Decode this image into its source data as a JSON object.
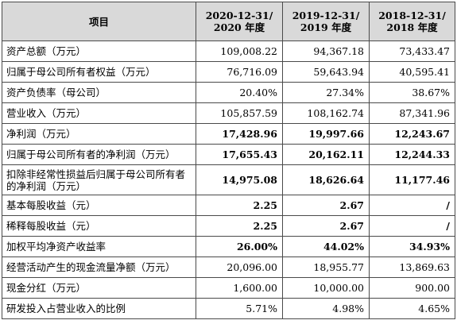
{
  "header": {
    "item": "项目",
    "col1": [
      "2020-12-31/",
      "2020 年度"
    ],
    "col2": [
      "2019-12-31/",
      "2019 年度"
    ],
    "col3": [
      "2018-12-31/",
      "2018 年度"
    ]
  },
  "rows": [
    {
      "label": "资产总额（万元）",
      "values": [
        "109,008.22",
        "94,367.18",
        "73,433.47"
      ],
      "bold": false
    },
    {
      "label": "归属于母公司所有者权益（万元）",
      "values": [
        "76,716.09",
        "59,643.94",
        "40,595.41"
      ],
      "bold": false
    },
    {
      "label": "资产负债率（母公司）",
      "values": [
        "20.40%",
        "27.34%",
        "38.67%"
      ],
      "bold": false
    },
    {
      "label": "营业收入（万元）",
      "values": [
        "105,857.59",
        "108,162.74",
        "87,341.96"
      ],
      "bold": false
    },
    {
      "label": "净利润（万元）",
      "values": [
        "17,428.96",
        "19,997.66",
        "12,243.67"
      ],
      "bold": true
    },
    {
      "label": "归属于母公司所有者的净利润（万元）",
      "values": [
        "17,655.43",
        "20,162.11",
        "12,244.33"
      ],
      "bold": true
    },
    {
      "label": "扣除非经常性损益后归属于母公司所有者的净利润（万元）",
      "values": [
        "14,975.08",
        "18,626.64",
        "11,177.46"
      ],
      "bold": true
    },
    {
      "label": "基本每股收益（元）",
      "values": [
        "2.25",
        "2.67",
        "/"
      ],
      "bold": true
    },
    {
      "label": "稀释每股收益（元）",
      "values": [
        "2.25",
        "2.67",
        "/"
      ],
      "bold": true
    },
    {
      "label": "加权平均净资产收益率",
      "values": [
        "26.00%",
        "44.02%",
        "34.93%"
      ],
      "bold": true
    },
    {
      "label": "经营活动产生的现金流量净额（万元）",
      "values": [
        "20,096.00",
        "18,955.77",
        "13,869.63"
      ],
      "bold": false
    },
    {
      "label": "现金分红（万元）",
      "values": [
        "1,600.00",
        "10,000.00",
        "900.00"
      ],
      "bold": false
    },
    {
      "label": "研发投入占营业收入的比例",
      "values": [
        "5.71%",
        "4.98%",
        "4.65%"
      ],
      "bold": false
    }
  ]
}
